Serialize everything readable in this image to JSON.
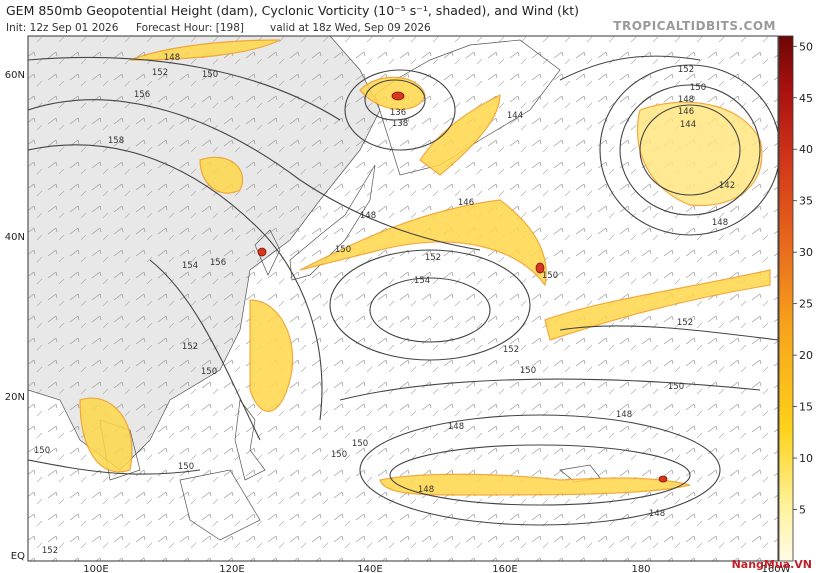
{
  "header": {
    "title": "GEM 850mb Geopotential Height (dam), Cyclonic Vorticity (10⁻⁵ s⁻¹, shaded), and Wind (kt)",
    "init": "Init: 12z Sep 01 2026",
    "forecast_hour": "Forecast Hour: [198]",
    "valid": "valid at 18z Wed, Sep 09 2026",
    "brand": "TROPICALTIDBITS.COM"
  },
  "map": {
    "lat_labels": [
      "60N",
      "40N",
      "20N",
      "EQ"
    ],
    "lon_labels": [
      "100E",
      "120E",
      "140E",
      "160E",
      "180",
      "160W"
    ],
    "contour_labels": [
      "148",
      "150",
      "152",
      "156",
      "158",
      "136",
      "138",
      "144",
      "146",
      "148",
      "150",
      "152",
      "154",
      "150",
      "152",
      "150",
      "148",
      "146",
      "144",
      "142",
      "148",
      "152",
      "152",
      "150",
      "150",
      "148",
      "148",
      "150",
      "150",
      "150",
      "150",
      "148",
      "148",
      "154",
      "156",
      "152",
      "150",
      "152"
    ]
  },
  "colorbar": {
    "range": [
      0,
      51
    ],
    "ticks": [
      5,
      10,
      15,
      20,
      25,
      30,
      35,
      40,
      45,
      50
    ]
  },
  "watermark": "NangMua.VN"
}
